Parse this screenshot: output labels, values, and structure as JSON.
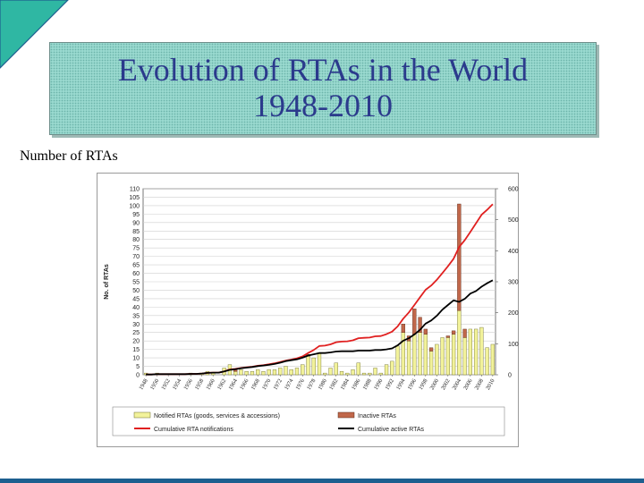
{
  "slide": {
    "title_line1": "Evolution of RTAs in the World",
    "title_line2": "1948-2010",
    "subtitle": "Number of RTAs"
  },
  "colors": {
    "title_bg": "#99d9cf",
    "title_text": "#2b3a8c",
    "notified_bar": "#f2f29a",
    "inactive_bar": "#c0674a",
    "cumulative_notifications": "#e02020",
    "cumulative_active": "#000000",
    "accent_bar": "#1d5f8f",
    "corner_fill": "#2fb7a3"
  },
  "chart_data": {
    "type": "bar",
    "ylabel": "No. of RTAs",
    "ylim": [
      0,
      110
    ],
    "y_ticks": [
      "0",
      "5",
      "10",
      "15",
      "20",
      "25",
      "30",
      "35",
      "40",
      "45",
      "50",
      "55",
      "60",
      "65",
      "70",
      "75",
      "80",
      "85",
      "90",
      "95",
      "100",
      "105",
      "110"
    ],
    "ylim_right": [
      0,
      600
    ],
    "y_ticks_right": [
      "0",
      "100",
      "200",
      "300",
      "400",
      "500",
      "600"
    ],
    "x_tick_labels": [
      "1948",
      "1950",
      "1952",
      "1954",
      "1956",
      "1958",
      "1960",
      "1962",
      "1964",
      "1966",
      "1968",
      "1970",
      "1972",
      "1974",
      "1976",
      "1978",
      "1980",
      "1982",
      "1984",
      "1986",
      "1988",
      "1990",
      "1992",
      "1994",
      "1996",
      "1998",
      "2000",
      "2002",
      "2004",
      "2006",
      "2008",
      "2010"
    ],
    "years": [
      1948,
      1949,
      1950,
      1951,
      1952,
      1953,
      1954,
      1955,
      1956,
      1957,
      1958,
      1959,
      1960,
      1961,
      1962,
      1963,
      1964,
      1965,
      1966,
      1967,
      1968,
      1969,
      1970,
      1971,
      1972,
      1973,
      1974,
      1975,
      1976,
      1977,
      1978,
      1979,
      1980,
      1981,
      1982,
      1983,
      1984,
      1985,
      1986,
      1987,
      1988,
      1989,
      1990,
      1991,
      1992,
      1993,
      1994,
      1995,
      1996,
      1997,
      1998,
      1999,
      2000,
      2001,
      2002,
      2003,
      2004,
      2005,
      2006,
      2007,
      2008,
      2009,
      2010
    ],
    "legend": [
      "Notified RTAs (goods, services & accessions)",
      "Inactive RTAs",
      "Cumulative RTA notifications",
      "Cumulative active RTAs"
    ],
    "legend_position": "bottom",
    "grid": true,
    "series": [
      {
        "name": "Notified RTAs (goods, services & accessions)",
        "type": "bar",
        "axis": "left",
        "values": [
          1,
          0,
          1,
          0,
          0,
          0,
          0,
          0,
          1,
          0,
          1,
          2,
          1,
          0,
          4,
          6,
          2,
          3,
          2,
          2,
          3,
          2,
          3,
          3,
          4,
          5,
          3,
          4,
          6,
          11,
          10,
          13,
          1,
          4,
          7,
          2,
          1,
          3,
          7,
          1,
          1,
          4,
          1,
          6,
          8,
          17,
          25,
          20,
          24,
          25,
          24,
          14,
          18,
          22,
          22,
          24,
          38,
          22,
          27,
          27,
          28,
          16,
          18
        ]
      },
      {
        "name": "Inactive RTAs",
        "type": "bar",
        "axis": "left",
        "values": [
          0,
          0,
          0,
          0,
          0,
          0,
          0,
          0,
          0,
          0,
          0,
          0,
          0,
          0,
          0,
          0,
          1,
          0,
          0,
          0,
          0,
          0,
          0,
          0,
          0,
          0,
          0,
          0,
          0,
          1,
          0,
          0,
          0,
          0,
          0,
          0,
          0,
          0,
          0,
          0,
          0,
          0,
          0,
          0,
          0,
          0,
          5,
          3,
          15,
          9,
          3,
          2,
          0,
          0,
          1,
          2,
          63,
          5,
          0,
          0,
          0,
          0,
          0
        ]
      },
      {
        "name": "Cumulative RTA notifications",
        "type": "line",
        "axis": "right",
        "values": [
          1,
          1,
          2,
          2,
          2,
          2,
          2,
          2,
          3,
          3,
          4,
          6,
          7,
          7,
          11,
          17,
          19,
          22,
          24,
          26,
          29,
          31,
          34,
          37,
          41,
          46,
          49,
          53,
          59,
          70,
          80,
          93,
          94,
          98,
          105,
          107,
          108,
          111,
          118,
          119,
          120,
          124,
          125,
          131,
          139,
          156,
          181,
          201,
          225,
          250,
          274,
          288,
          306,
          328,
          350,
          374,
          412,
          434,
          461,
          488,
          516,
          532,
          550
        ]
      },
      {
        "name": "Cumulative active RTAs",
        "type": "line",
        "axis": "right",
        "values": [
          1,
          1,
          2,
          2,
          2,
          2,
          2,
          2,
          3,
          3,
          4,
          6,
          7,
          7,
          11,
          16,
          18,
          21,
          23,
          25,
          28,
          30,
          32,
          35,
          39,
          44,
          47,
          50,
          55,
          62,
          66,
          70,
          70,
          72,
          75,
          76,
          76,
          76,
          78,
          78,
          78,
          80,
          80,
          82,
          85,
          95,
          110,
          118,
          130,
          145,
          165,
          175,
          190,
          210,
          225,
          240,
          235,
          245,
          262,
          270,
          284,
          295,
          305
        ]
      }
    ]
  }
}
